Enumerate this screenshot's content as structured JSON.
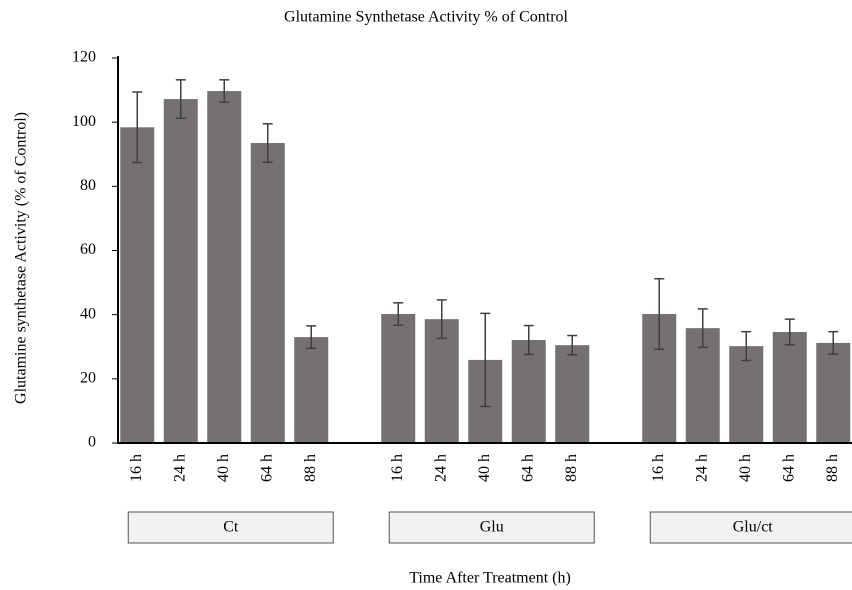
{
  "chart_data": {
    "type": "bar",
    "title": "Glutamine Synthetase Activity % of Control",
    "y_label": "Glutamine synthetase Activity (% of Control)",
    "x_label": "Time After Treatment (h)",
    "color": "#757171",
    "error_color": "#404040",
    "ylim": [
      0,
      120
    ],
    "yticks": [
      0,
      20,
      40,
      60,
      80,
      100,
      120
    ],
    "groups": [
      {
        "label": "Ct",
        "categories": [
          "16 h",
          "24 h",
          "40 h",
          "64 h",
          "88 h"
        ],
        "values": [
          98.4,
          107.2,
          109.7,
          93.5,
          33
        ],
        "errors": [
          11,
          6,
          3.5,
          6,
          3.5
        ]
      },
      {
        "label": "Glu",
        "categories": [
          "16 h",
          "24 h",
          "40 h",
          "64 h",
          "88 h"
        ],
        "values": [
          40.2,
          38.6,
          25.9,
          32.1,
          30.5
        ],
        "errors": [
          3.5,
          6,
          14.5,
          4.5,
          3
        ]
      },
      {
        "label": "Glu/ct",
        "categories": [
          "16 h",
          "24 h",
          "40 h",
          "64 h",
          "88 h"
        ],
        "values": [
          40.2,
          35.8,
          30.2,
          34.6,
          31.2
        ],
        "errors": [
          11,
          6,
          4.5,
          4,
          3.5
        ]
      }
    ]
  }
}
